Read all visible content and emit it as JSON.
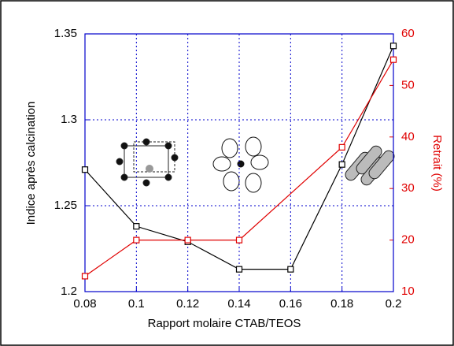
{
  "chart_data": {
    "type": "line",
    "xlabel": "Rapport molaire CTAB/TEOS",
    "ylabel": "Indice après calcination",
    "y2label": "Retrait (%)",
    "xlim": [
      0.08,
      0.2
    ],
    "xticks": [
      0.08,
      0.1,
      0.12,
      0.14,
      0.16,
      0.18,
      0.2
    ],
    "ylim": [
      1.2,
      1.35
    ],
    "yticks": [
      1.2,
      1.25,
      1.3,
      1.35
    ],
    "y2lim": [
      10,
      60
    ],
    "y2ticks": [
      10,
      20,
      30,
      40,
      50,
      60
    ],
    "grid": true,
    "grid_color": "#0000cc",
    "y2_color": "#e00000",
    "series": [
      {
        "color": "#000000",
        "x": [
          0.08,
          0.1,
          0.12,
          0.14,
          0.16,
          0.18,
          0.2
        ],
        "values": [
          1.271,
          1.238,
          1.229,
          1.213,
          1.213,
          1.274,
          1.343
        ]
      },
      {
        "color": "#e00000",
        "axis": "y2",
        "x": [
          0.08,
          0.1,
          0.12,
          0.14,
          0.18,
          0.2
        ],
        "values": [
          13,
          20,
          20,
          20,
          38,
          55
        ]
      }
    ]
  }
}
